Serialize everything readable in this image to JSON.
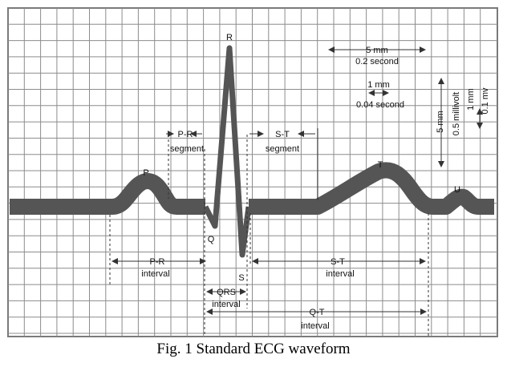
{
  "caption": "Fig. 1 Standard ECG waveform",
  "waves": {
    "p": "P",
    "q": "Q",
    "r": "R",
    "s": "S",
    "t": "T",
    "u": "U"
  },
  "labels": {
    "pr_segment_1": "P-R",
    "pr_segment_2": "segment",
    "st_segment_1": "S-T",
    "st_segment_2": "segment",
    "pr_interval_1": "P-R",
    "pr_interval_2": "interval",
    "st_interval_1": "S-T",
    "st_interval_2": "interval",
    "qrs_interval_1": "QRS",
    "qrs_interval_2": "interval",
    "qt_interval_1": "Q-T",
    "qt_interval_2": "interval"
  },
  "scale": {
    "five_mm": "5 mm",
    "point_two_second": "0.2 second",
    "one_mm": "1 mm",
    "point_zero_four_second": "0.04 second",
    "five_mm_vertical": "5 mm",
    "half_millivolt": "0.5 millivolt",
    "one_mm_vertical": "1 mm",
    "point_one_mv": "0.1 mv"
  },
  "colors": {
    "grid": "#8c8c8c",
    "wave": "#555555",
    "frame": "#7a7a7a"
  }
}
